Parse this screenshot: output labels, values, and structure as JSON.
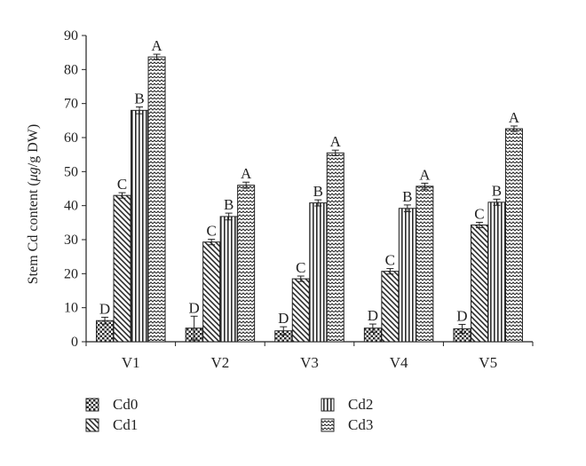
{
  "chart_data": {
    "type": "bar",
    "categories": [
      "V1",
      "V2",
      "V3",
      "V4",
      "V5"
    ],
    "series": [
      {
        "name": "Cd0",
        "values": [
          6.2,
          4.0,
          3.2,
          4.0,
          3.8
        ],
        "errors": [
          1.0,
          3.5,
          1.2,
          1.2,
          1.3
        ],
        "letters": [
          "D",
          "D",
          "D",
          "D",
          "D"
        ]
      },
      {
        "name": "Cd1",
        "values": [
          43.0,
          29.3,
          18.5,
          20.7,
          34.3
        ],
        "errors": [
          0.8,
          0.8,
          0.8,
          0.8,
          0.8
        ],
        "letters": [
          "C",
          "C",
          "C",
          "C",
          "C"
        ]
      },
      {
        "name": "Cd2",
        "values": [
          68.0,
          36.8,
          40.8,
          39.2,
          41.0
        ],
        "errors": [
          1.0,
          1.0,
          0.9,
          1.0,
          0.9
        ],
        "letters": [
          "B",
          "B",
          "B",
          "B",
          "B"
        ]
      },
      {
        "name": "Cd3",
        "values": [
          83.7,
          46.0,
          55.5,
          45.7,
          62.6
        ],
        "errors": [
          0.8,
          0.9,
          0.8,
          0.9,
          0.8
        ],
        "letters": [
          "A",
          "A",
          "A",
          "A",
          "A"
        ]
      }
    ],
    "ylabel_prefix": "Stem Cd content (",
    "ylabel_unit": "μg",
    "ylabel_suffix": "/g DW)",
    "ylim": [
      0,
      90
    ],
    "yticks": [
      0,
      10,
      20,
      30,
      40,
      50,
      60,
      70,
      80,
      90
    ],
    "grid": false,
    "legend_position": "bottom"
  }
}
